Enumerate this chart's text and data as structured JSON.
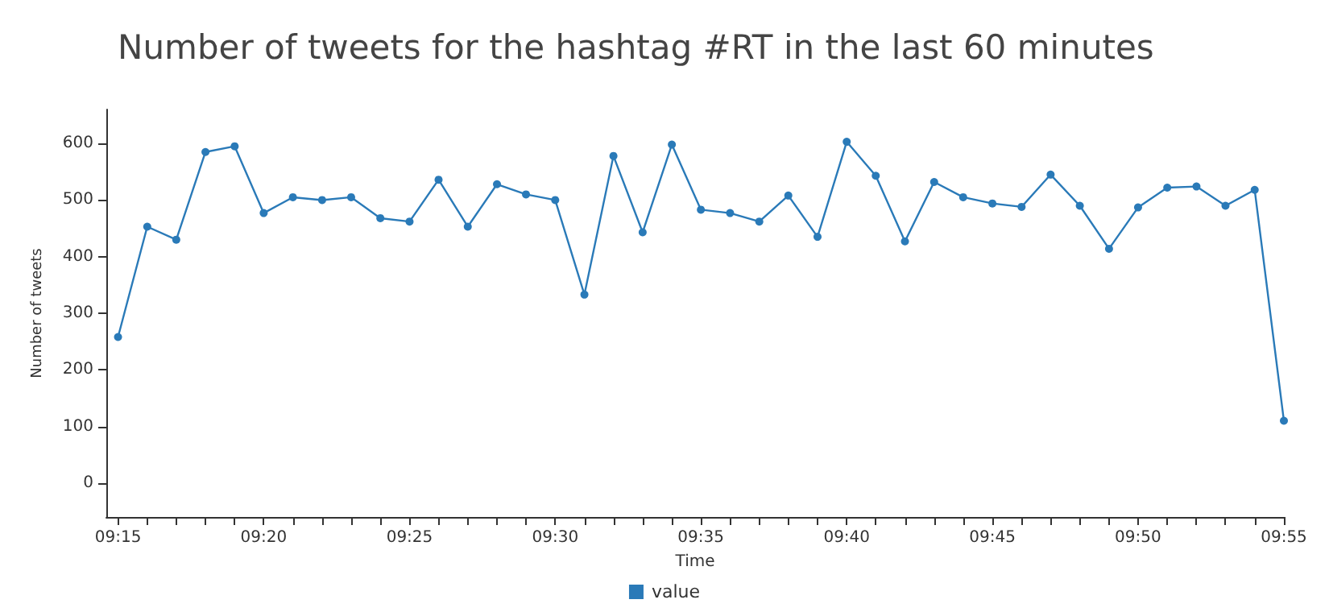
{
  "chart_data": {
    "type": "line",
    "title": "Number of tweets for the hashtag #RT in the last 60 minutes",
    "xlabel": "Time",
    "ylabel": "Number of tweets",
    "x": [
      9.25,
      9.2667,
      9.2833,
      9.3,
      9.3167,
      9.3333,
      9.35,
      9.3667,
      9.3833,
      9.4,
      9.4167,
      9.4333,
      9.45,
      9.4667,
      9.4833,
      9.5,
      9.5167,
      9.5333,
      9.55,
      9.5667,
      9.5833,
      9.6,
      9.6167,
      9.6333,
      9.65,
      9.6667,
      9.6833,
      9.7,
      9.7167,
      9.7333,
      9.75,
      9.7667,
      9.7833,
      9.8,
      9.8167,
      9.8333,
      9.85,
      9.8667,
      9.8833,
      9.9,
      9.9167
    ],
    "series": [
      {
        "name": "value",
        "color": "#2a7ab8",
        "values": [
          258,
          453,
          430,
          585,
          595,
          477,
          505,
          500,
          505,
          468,
          462,
          536,
          453,
          528,
          510,
          500,
          333,
          578,
          443,
          598,
          483,
          477,
          462,
          508,
          435,
          603,
          543,
          427,
          532,
          505,
          494,
          488,
          545,
          490,
          414,
          487,
          522,
          524,
          490,
          518,
          110
        ]
      }
    ],
    "xlim": [
      9.2433,
      9.9167
    ],
    "xticks": [
      {
        "value": 9.25,
        "label": "09:15"
      },
      {
        "value": 9.2667,
        "label": null
      },
      {
        "value": 9.2833,
        "label": null
      },
      {
        "value": 9.3,
        "label": null
      },
      {
        "value": 9.3167,
        "label": null
      },
      {
        "value": 9.3333,
        "label": "09:20"
      },
      {
        "value": 9.35,
        "label": null
      },
      {
        "value": 9.3667,
        "label": null
      },
      {
        "value": 9.3833,
        "label": null
      },
      {
        "value": 9.4,
        "label": null
      },
      {
        "value": 9.4167,
        "label": "09:25"
      },
      {
        "value": 9.4333,
        "label": null
      },
      {
        "value": 9.45,
        "label": null
      },
      {
        "value": 9.4667,
        "label": null
      },
      {
        "value": 9.4833,
        "label": null
      },
      {
        "value": 9.5,
        "label": "09:30"
      },
      {
        "value": 9.5167,
        "label": null
      },
      {
        "value": 9.5333,
        "label": null
      },
      {
        "value": 9.55,
        "label": null
      },
      {
        "value": 9.5667,
        "label": null
      },
      {
        "value": 9.5833,
        "label": "09:35"
      },
      {
        "value": 9.6,
        "label": null
      },
      {
        "value": 9.6167,
        "label": null
      },
      {
        "value": 9.6333,
        "label": null
      },
      {
        "value": 9.65,
        "label": null
      },
      {
        "value": 9.6667,
        "label": "09:40"
      },
      {
        "value": 9.6833,
        "label": null
      },
      {
        "value": 9.7,
        "label": null
      },
      {
        "value": 9.7167,
        "label": null
      },
      {
        "value": 9.7333,
        "label": null
      },
      {
        "value": 9.75,
        "label": "09:45"
      },
      {
        "value": 9.7667,
        "label": null
      },
      {
        "value": 9.7833,
        "label": null
      },
      {
        "value": 9.8,
        "label": null
      },
      {
        "value": 9.8167,
        "label": null
      },
      {
        "value": 9.8333,
        "label": "09:50"
      },
      {
        "value": 9.85,
        "label": null
      },
      {
        "value": 9.8667,
        "label": null
      },
      {
        "value": 9.8833,
        "label": null
      },
      {
        "value": 9.9,
        "label": null
      },
      {
        "value": 9.9167,
        "label": "09:55"
      }
    ],
    "ylim": [
      -60,
      660
    ],
    "yticks": [
      0,
      100,
      200,
      300,
      400,
      500,
      600
    ],
    "legend": "bottom",
    "marker": "circle",
    "line_style": "solid",
    "grid": false
  }
}
